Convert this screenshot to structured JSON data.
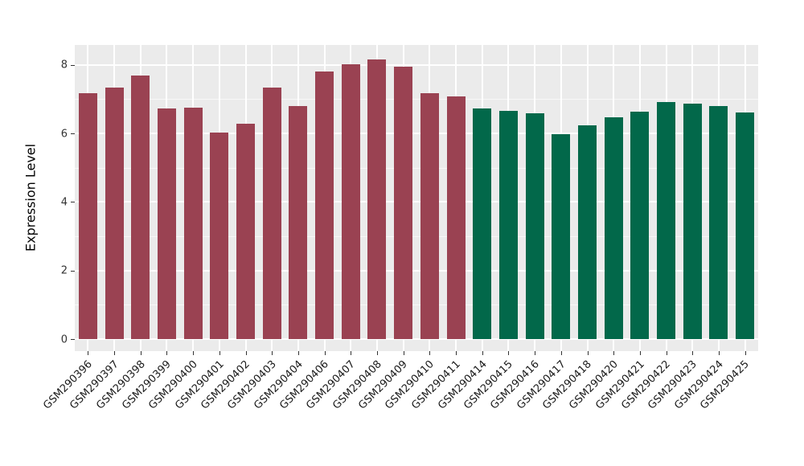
{
  "chart_data": {
    "type": "bar",
    "title": "",
    "xlabel": "",
    "ylabel": "Expression Level",
    "yticks": [
      0,
      2,
      4,
      6,
      8
    ],
    "minor_yticks": [
      1,
      3,
      5,
      7
    ],
    "ylim": [
      -0.35,
      8.58
    ],
    "grid": true,
    "legend_position": "none",
    "panel_bg": "#EBEBEB",
    "grid_color": "#FFFFFF",
    "categories": [
      "GSM290396",
      "GSM290397",
      "GSM290398",
      "GSM290399",
      "GSM290400",
      "GSM290401",
      "GSM290402",
      "GSM290403",
      "GSM290404",
      "GSM290406",
      "GSM290407",
      "GSM290408",
      "GSM290409",
      "GSM290410",
      "GSM290411",
      "GSM290414",
      "GSM290415",
      "GSM290416",
      "GSM290417",
      "GSM290418",
      "GSM290420",
      "GSM290421",
      "GSM290422",
      "GSM290423",
      "GSM290424",
      "GSM290425"
    ],
    "values": [
      7.18,
      7.33,
      7.68,
      6.72,
      6.75,
      6.03,
      6.28,
      7.34,
      6.81,
      7.8,
      8.01,
      8.16,
      7.95,
      7.18,
      7.08,
      6.73,
      6.66,
      6.59,
      5.98,
      6.23,
      6.47,
      6.64,
      6.91,
      6.87,
      6.79,
      6.62
    ],
    "color_groups": [
      {
        "color": "#9A4252",
        "from_index": 0,
        "to_index": 14
      },
      {
        "color": "#02684A",
        "from_index": 15,
        "to_index": 25
      }
    ]
  }
}
